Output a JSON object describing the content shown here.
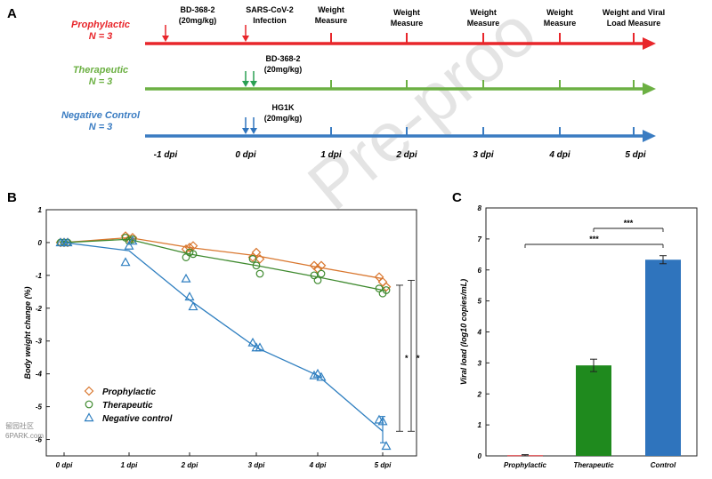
{
  "panels": {
    "a": "A",
    "b": "B",
    "c": "C"
  },
  "timeline": {
    "groups": [
      {
        "name": "Prophylactic",
        "n": "N = 3",
        "color": "#e8262b"
      },
      {
        "name": "Therapeutic",
        "n": "N = 3",
        "color": "#6cb043"
      },
      {
        "name": "Negative Control",
        "n": "N = 3",
        "color": "#3a7cc2"
      }
    ],
    "top_labels": {
      "bd368_line1": "BD-368-2",
      "bd368_line2": "(20mg/kg)",
      "infection_line1": "SARS-CoV-2",
      "infection_line2": "Infection",
      "weight1_line1": "Weight",
      "weight1_line2": "Measure",
      "weight2_line1": "Weight",
      "weight2_line2": "Measure",
      "weight3_line1": "Weight",
      "weight3_line2": "Measure",
      "weight4_line1": "Weight",
      "weight4_line2": "Measure",
      "final_line1": "Weight and Viral",
      "final_line2": "Load Measure"
    },
    "therapeutic_dose_line1": "BD-368-2",
    "therapeutic_dose_line2": "(20mg/kg)",
    "control_dose_line1": "HG1K",
    "control_dose_line2": "(20mg/kg)",
    "days": [
      "-1 dpi",
      "0 dpi",
      "1 dpi",
      "2 dpi",
      "3 dpi",
      "4 dpi",
      "5 dpi"
    ]
  },
  "watermark": "Pre-proo",
  "corner_mark_line1": "留园社区",
  "corner_mark_line2": "6PARK.com",
  "chart_data": [
    {
      "type": "line",
      "ylabel": "Body weight change (%)",
      "xlabel": "",
      "categories": [
        "0 dpi",
        "1 dpi",
        "2 dpi",
        "3 dpi",
        "4 dpi",
        "5 dpi"
      ],
      "ylim": [
        -6.5,
        1
      ],
      "yticks": [
        "1",
        "0",
        "-1",
        "-2",
        "-3",
        "-4",
        "-5",
        "-6"
      ],
      "grid": false,
      "legend_position": "bottom-left",
      "series": [
        {
          "name": "Prophylactic",
          "marker": "diamond",
          "color": "#d9772f",
          "values": [
            0.0,
            0.15,
            -0.15,
            -0.4,
            -0.75,
            -1.1
          ],
          "points": [
            [
              0,
              0
            ],
            [
              0,
              0
            ],
            [
              0,
              0
            ],
            [
              1,
              0.2
            ],
            [
              1,
              0.1
            ],
            [
              1,
              0.15
            ],
            [
              2,
              -0.2
            ],
            [
              2,
              -0.15
            ],
            [
              2,
              -0.1
            ],
            [
              3,
              -0.45
            ],
            [
              3,
              -0.3
            ],
            [
              3,
              -0.5
            ],
            [
              4,
              -0.7
            ],
            [
              4,
              -0.8
            ],
            [
              4,
              -0.7
            ],
            [
              5,
              -1.05
            ],
            [
              5,
              -1.2
            ],
            [
              5,
              -1.35
            ]
          ]
        },
        {
          "name": "Therapeutic",
          "marker": "circle",
          "color": "#3f8a2f",
          "values": [
            0.0,
            0.1,
            -0.35,
            -0.7,
            -1.05,
            -1.45
          ],
          "points": [
            [
              0,
              0
            ],
            [
              0,
              0
            ],
            [
              0,
              0
            ],
            [
              1,
              0.15
            ],
            [
              1,
              0.05
            ],
            [
              1,
              0.1
            ],
            [
              2,
              -0.45
            ],
            [
              2,
              -0.3
            ],
            [
              2,
              -0.35
            ],
            [
              3,
              -0.5
            ],
            [
              3,
              -0.7
            ],
            [
              3,
              -0.95
            ],
            [
              4,
              -1.0
            ],
            [
              4,
              -1.15
            ],
            [
              4,
              -0.95
            ],
            [
              5,
              -1.4
            ],
            [
              5,
              -1.55
            ],
            [
              5,
              -1.45
            ]
          ]
        },
        {
          "name": "Negative control",
          "marker": "triangle",
          "color": "#2f7fc0",
          "values": [
            0.0,
            -0.25,
            -1.75,
            -3.2,
            -4.05,
            -5.75
          ],
          "points": [
            [
              0,
              0
            ],
            [
              0,
              0
            ],
            [
              0,
              0
            ],
            [
              1,
              -0.6
            ],
            [
              1,
              -0.1
            ],
            [
              1,
              0.05
            ],
            [
              2,
              -1.1
            ],
            [
              2,
              -1.65
            ],
            [
              2,
              -1.95
            ],
            [
              3,
              -3.05
            ],
            [
              3,
              -3.2
            ],
            [
              3,
              -3.2
            ],
            [
              4,
              -4.05
            ],
            [
              4,
              -4.0
            ],
            [
              4,
              -4.1
            ],
            [
              5,
              -5.4
            ],
            [
              5,
              -5.45
            ],
            [
              5,
              -6.2
            ]
          ]
        }
      ],
      "annotations": [
        "*",
        "*"
      ]
    },
    {
      "type": "bar",
      "ylabel": "Viral load (log10 copies/mL)",
      "categories": [
        "Prophylactic",
        "Therapeutic",
        "Control"
      ],
      "values": [
        0.02,
        2.92,
        6.33
      ],
      "errors": [
        0.02,
        0.2,
        0.13
      ],
      "colors": [
        "#d7262b",
        "#1f8a1e",
        "#2f74bd"
      ],
      "ylim": [
        0,
        8
      ],
      "yticks": [
        "0",
        "1",
        "2",
        "3",
        "4",
        "5",
        "6",
        "7",
        "8"
      ],
      "grid": false,
      "annotations": [
        "***",
        "***"
      ]
    }
  ]
}
